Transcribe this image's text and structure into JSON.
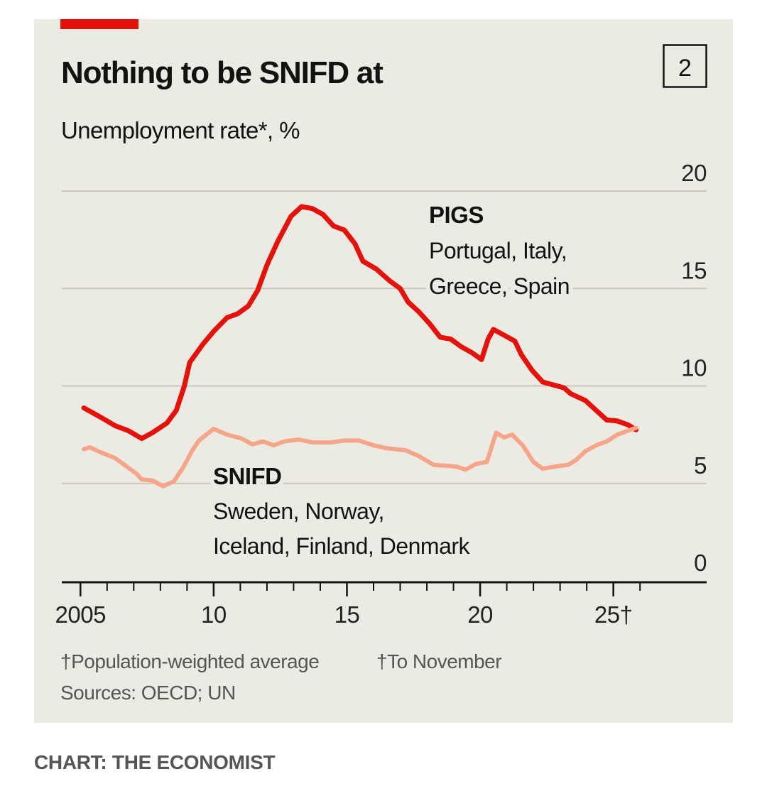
{
  "chart_data": {
    "type": "line",
    "title": "Nothing to be SNIFD at",
    "subtitle": "Unemployment rate*, %",
    "panel_number": "2",
    "xlim": [
      2004.3,
      2028.5
    ],
    "xticks": [
      2005,
      {
        "value": 2010,
        "label": "10"
      },
      {
        "value": 2015,
        "label": "15"
      },
      {
        "value": 2020,
        "label": "20"
      },
      {
        "value": 2025,
        "label": "25†"
      }
    ],
    "xminorticks": [
      2005,
      2006,
      2007,
      2008,
      2009,
      2010,
      2011,
      2012,
      2013,
      2014,
      2015,
      2016,
      2017,
      2018,
      2019,
      2020,
      2021,
      2022,
      2023,
      2024,
      2025,
      2026
    ],
    "ylim": [
      0,
      20
    ],
    "yticks": [
      0,
      5,
      10,
      15,
      20
    ],
    "grid": true,
    "series": [
      {
        "name": "PIGS",
        "color": "#e3120b",
        "x": [
          2005.13,
          2005.75,
          2006.3,
          2006.8,
          2007.3,
          2007.7,
          2008.25,
          2008.6,
          2008.9,
          2009.1,
          2009.6,
          2010.0,
          2010.5,
          2010.9,
          2011.3,
          2011.65,
          2012.0,
          2012.4,
          2012.9,
          2013.3,
          2013.7,
          2014.1,
          2014.5,
          2014.9,
          2015.3,
          2015.6,
          2016.1,
          2016.6,
          2017.0,
          2017.3,
          2017.7,
          2018.1,
          2018.5,
          2018.9,
          2019.3,
          2019.7,
          2020.05,
          2020.3,
          2020.5,
          2020.9,
          2021.3,
          2021.55,
          2021.95,
          2022.35,
          2022.75,
          2023.15,
          2023.4,
          2023.95,
          2024.35,
          2024.75,
          2025.15,
          2025.55,
          2025.85
        ],
        "values": [
          8.87,
          8.4,
          7.96,
          7.7,
          7.3,
          7.6,
          8.1,
          8.75,
          10.0,
          11.2,
          12.15,
          12.8,
          13.5,
          13.7,
          14.1,
          14.9,
          16.2,
          17.4,
          18.7,
          19.2,
          19.1,
          18.8,
          18.2,
          18.0,
          17.3,
          16.4,
          16.0,
          15.4,
          15.0,
          14.3,
          13.8,
          13.2,
          12.5,
          12.4,
          12.0,
          11.7,
          11.35,
          12.4,
          12.9,
          12.6,
          12.3,
          11.6,
          10.8,
          10.2,
          10.05,
          9.9,
          9.6,
          9.25,
          8.75,
          8.25,
          8.2,
          8.0,
          7.75
        ]
      },
      {
        "name": "SNIFD",
        "color": "#f4a58a",
        "x": [
          2005.13,
          2005.35,
          2005.75,
          2006.3,
          2006.8,
          2007.1,
          2007.3,
          2007.7,
          2008.1,
          2008.5,
          2008.85,
          2009.2,
          2009.45,
          2010.0,
          2010.5,
          2011.05,
          2011.45,
          2011.85,
          2012.25,
          2012.65,
          2013.2,
          2013.7,
          2014.4,
          2014.9,
          2015.45,
          2016.0,
          2016.5,
          2017.2,
          2017.7,
          2018.25,
          2018.75,
          2019.15,
          2019.45,
          2019.85,
          2020.25,
          2020.6,
          2020.9,
          2021.2,
          2021.6,
          2022.0,
          2022.35,
          2022.75,
          2023.3,
          2023.6,
          2023.95,
          2024.35,
          2024.75,
          2025.15,
          2025.55,
          2025.85
        ],
        "values": [
          6.75,
          6.85,
          6.6,
          6.3,
          5.8,
          5.5,
          5.2,
          5.15,
          4.85,
          5.1,
          5.8,
          6.7,
          7.2,
          7.8,
          7.5,
          7.3,
          7.0,
          7.15,
          6.95,
          7.15,
          7.25,
          7.1,
          7.1,
          7.2,
          7.2,
          6.95,
          6.8,
          6.7,
          6.4,
          5.95,
          5.9,
          5.85,
          5.7,
          6.0,
          6.1,
          7.6,
          7.35,
          7.5,
          6.95,
          6.1,
          5.75,
          5.85,
          5.95,
          6.2,
          6.65,
          6.95,
          7.15,
          7.5,
          7.7,
          7.85
        ]
      }
    ],
    "annotations": [
      {
        "title": "PIGS",
        "lines": [
          "Portugal, Italy,",
          "Greece, Spain"
        ]
      },
      {
        "title": "SNIFD",
        "lines": [
          "Sweden, Norway,",
          "Iceland, Finland, Denmark"
        ]
      }
    ],
    "footnotes": [
      "†Population-weighted average",
      "†To November"
    ],
    "source": "Sources: OECD; UN",
    "credit": "CHART: THE ECONOMIST"
  }
}
